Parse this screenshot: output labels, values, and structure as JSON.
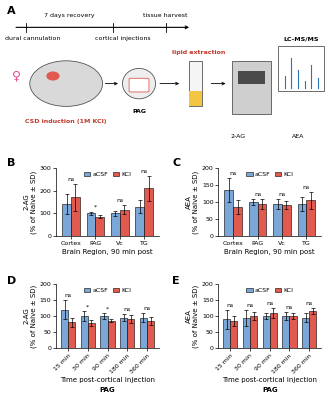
{
  "panel_a": {
    "panel": "A",
    "timeline": {
      "above": [
        "7 days recovery",
        "tissue harvest"
      ],
      "below": [
        "dural cannulation",
        "cortical injections"
      ]
    },
    "model": {
      "label": "CSD induction (1M KCl)",
      "sex": "♀",
      "region": "PAG"
    },
    "analysis": {
      "steps": [
        "lipid extraction",
        "LC-MS/MS"
      ],
      "analytes": [
        "2-AG",
        "AEA"
      ]
    }
  },
  "chart_data": [
    {
      "panel": "B",
      "type": "bar",
      "y_label": "2-AG\n(% of Naive ± SD)",
      "x_label": "Brain Region, 90 min post",
      "categories": [
        "Cortex",
        "PAG",
        "Vc",
        "TG"
      ],
      "series": [
        {
          "name": "aCSF",
          "color": "#7aa6d8",
          "values": [
            140,
            100,
            100,
            130
          ],
          "errors": [
            45,
            8,
            12,
            30
          ]
        },
        {
          "name": "KCl",
          "color": "#e05a4f",
          "values": [
            170,
            85,
            115,
            210
          ],
          "errors": [
            60,
            6,
            20,
            55
          ]
        }
      ],
      "significance": [
        "ns",
        "*",
        "ns",
        "ns"
      ],
      "ylim": [
        0,
        300
      ],
      "yticks": [
        0,
        100,
        200,
        300
      ],
      "legend": "upper center"
    },
    {
      "panel": "C",
      "type": "bar",
      "y_label": "AEA\n(% of Naive ± SD)",
      "x_label": "Brain Region, 90 min post",
      "categories": [
        "Cortex",
        "PAG",
        "Vc",
        "TG"
      ],
      "series": [
        {
          "name": "aCSF",
          "color": "#7aa6d8",
          "values": [
            135,
            100,
            95,
            95
          ],
          "errors": [
            35,
            10,
            15,
            20
          ]
        },
        {
          "name": "KCl",
          "color": "#e05a4f",
          "values": [
            85,
            95,
            90,
            105
          ],
          "errors": [
            20,
            15,
            12,
            25
          ]
        }
      ],
      "significance": [
        "ns",
        "ns",
        "ns",
        "ns"
      ],
      "ylim": [
        0,
        200
      ],
      "yticks": [
        0,
        50,
        100,
        150,
        200
      ],
      "legend": "upper center"
    },
    {
      "panel": "D",
      "type": "bar",
      "y_label": "2-AG\n(% of Naive ± SD)",
      "x_label": "Time post-cortical injection",
      "region": "PAG",
      "categories": [
        "15 min",
        "30 min",
        "90 min",
        "180 min",
        "360 min"
      ],
      "series": [
        {
          "name": "aCSF",
          "color": "#7aa6d8",
          "values": [
            120,
            100,
            100,
            95,
            95
          ],
          "errors": [
            30,
            15,
            8,
            12,
            15
          ]
        },
        {
          "name": "KCl",
          "color": "#e05a4f",
          "values": [
            80,
            78,
            85,
            90,
            85
          ],
          "errors": [
            15,
            8,
            5,
            12,
            12
          ]
        }
      ],
      "significance": [
        "ns",
        "*",
        "*",
        "ns",
        "ns"
      ],
      "ylim": [
        0,
        200
      ],
      "yticks": [
        0,
        50,
        100,
        150,
        200
      ],
      "legend": "upper center"
    },
    {
      "panel": "E",
      "type": "bar",
      "y_label": "AEA\n(% of Naive ± SD)",
      "x_label": "Time post-cortical injection",
      "region": "PAG",
      "categories": [
        "15 min",
        "30 min",
        "90 min",
        "180 min",
        "360 min"
      ],
      "series": [
        {
          "name": "aCSF",
          "color": "#7aa6d8",
          "values": [
            90,
            95,
            100,
            100,
            95
          ],
          "errors": [
            30,
            25,
            10,
            12,
            15
          ]
        },
        {
          "name": "KCl",
          "color": "#e05a4f",
          "values": [
            85,
            100,
            110,
            100,
            115
          ],
          "errors": [
            15,
            12,
            15,
            10,
            10
          ]
        }
      ],
      "significance": [
        "ns",
        "ns",
        "ns",
        "ns",
        "ns"
      ],
      "ylim": [
        0,
        200
      ],
      "yticks": [
        0,
        50,
        100,
        150,
        200
      ],
      "legend": "upper center"
    }
  ]
}
